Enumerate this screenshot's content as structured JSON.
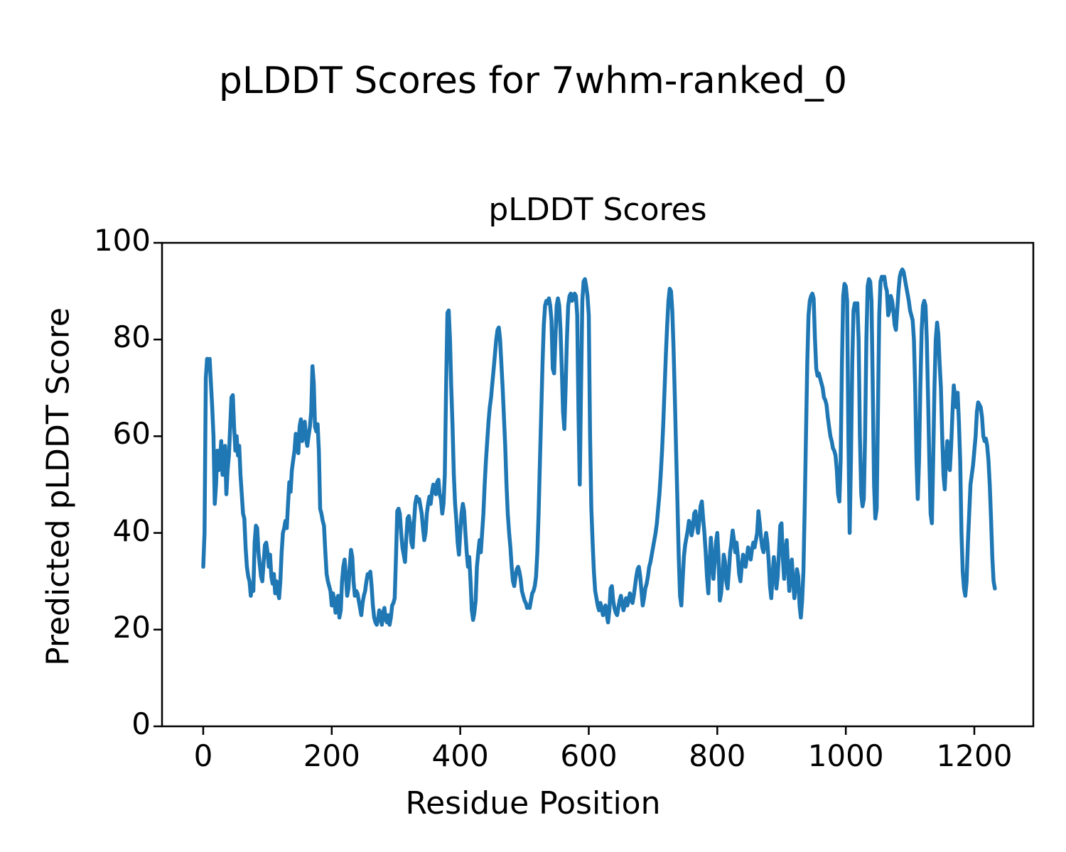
{
  "figure": {
    "suptitle": "pLDDT Scores for 7whm-ranked_0",
    "axes_title": "pLDDT Scores",
    "xlabel": "Residue Position",
    "ylabel": "Predicted pLDDT Score"
  },
  "chart_data": {
    "type": "line",
    "title": "pLDDT Scores",
    "xlabel": "Residue Position",
    "ylabel": "Predicted pLDDT Score",
    "xlim": [
      -64.1,
      1291.8
    ],
    "ylim": [
      0,
      100
    ],
    "xticks": [
      0,
      200,
      400,
      600,
      800,
      1000,
      1200
    ],
    "yticks": [
      0,
      20,
      40,
      60,
      80,
      100
    ],
    "grid": false,
    "legend": "none",
    "line_color": "#1f77b4",
    "series": [
      {
        "name": "pLDDT",
        "x": [
          0,
          2,
          4,
          6,
          8,
          10,
          12,
          14,
          16,
          18,
          20,
          22,
          24,
          26,
          28,
          30,
          32,
          34,
          36,
          38,
          40,
          42,
          44,
          46,
          48,
          50,
          52,
          54,
          56,
          58,
          60,
          62,
          64,
          66,
          68,
          70,
          72,
          74,
          76,
          78,
          80,
          82,
          84,
          86,
          88,
          90,
          92,
          94,
          96,
          98,
          100,
          102,
          104,
          106,
          108,
          110,
          112,
          114,
          116,
          118,
          120,
          122,
          124,
          126,
          128,
          130,
          132,
          134,
          136,
          138,
          140,
          142,
          144,
          146,
          148,
          150,
          152,
          154,
          156,
          158,
          160,
          162,
          164,
          166,
          168,
          170,
          172,
          174,
          176,
          178,
          180,
          182,
          184,
          186,
          188,
          190,
          192,
          194,
          196,
          198,
          200,
          202,
          204,
          206,
          208,
          210,
          212,
          214,
          216,
          218,
          220,
          222,
          224,
          226,
          228,
          230,
          232,
          234,
          236,
          238,
          240,
          242,
          244,
          246,
          248,
          250,
          252,
          254,
          256,
          258,
          260,
          262,
          264,
          266,
          268,
          270,
          272,
          274,
          276,
          278,
          280,
          282,
          284,
          286,
          288,
          290,
          292,
          294,
          296,
          298,
          300,
          302,
          304,
          306,
          308,
          310,
          312,
          314,
          316,
          318,
          320,
          322,
          324,
          326,
          328,
          330,
          332,
          334,
          336,
          338,
          340,
          342,
          344,
          346,
          348,
          350,
          352,
          354,
          356,
          358,
          360,
          362,
          364,
          366,
          368,
          370,
          372,
          374,
          376,
          378,
          380,
          382,
          384,
          386,
          388,
          390,
          392,
          394,
          396,
          398,
          400,
          402,
          404,
          406,
          408,
          410,
          412,
          414,
          416,
          418,
          420,
          422,
          424,
          426,
          428,
          430,
          432,
          434,
          436,
          438,
          440,
          442,
          444,
          446,
          448,
          450,
          452,
          454,
          456,
          458,
          460,
          462,
          464,
          466,
          468,
          470,
          472,
          474,
          476,
          478,
          480,
          482,
          484,
          486,
          488,
          490,
          492,
          494,
          496,
          498,
          500,
          502,
          504,
          506,
          508,
          510,
          512,
          514,
          516,
          518,
          520,
          522,
          524,
          526,
          528,
          530,
          532,
          534,
          536,
          538,
          540,
          542,
          544,
          546,
          548,
          550,
          552,
          554,
          556,
          558,
          560,
          562,
          564,
          566,
          568,
          570,
          572,
          574,
          576,
          578,
          580,
          582,
          584,
          586,
          588,
          590,
          592,
          594,
          596,
          598,
          600,
          602,
          604,
          606,
          608,
          610,
          612,
          614,
          616,
          618,
          620,
          622,
          624,
          626,
          628,
          630,
          632,
          634,
          636,
          638,
          640,
          642,
          644,
          646,
          648,
          650,
          652,
          654,
          656,
          658,
          660,
          662,
          664,
          666,
          668,
          670,
          672,
          674,
          676,
          678,
          680,
          682,
          684,
          686,
          688,
          690,
          692,
          694,
          696,
          698,
          700,
          702,
          704,
          706,
          708,
          710,
          712,
          714,
          716,
          718,
          720,
          722,
          724,
          726,
          728,
          730,
          732,
          734,
          736,
          738,
          740,
          742,
          744,
          746,
          748,
          750,
          752,
          754,
          756,
          758,
          760,
          762,
          764,
          766,
          768,
          770,
          772,
          774,
          776,
          778,
          780,
          782,
          784,
          786,
          788,
          790,
          792,
          794,
          796,
          798,
          800,
          802,
          804,
          806,
          808,
          810,
          812,
          814,
          816,
          818,
          820,
          822,
          824,
          826,
          828,
          830,
          832,
          834,
          836,
          838,
          840,
          842,
          844,
          846,
          848,
          850,
          852,
          854,
          856,
          858,
          860,
          862,
          864,
          866,
          868,
          870,
          872,
          874,
          876,
          878,
          880,
          882,
          884,
          886,
          888,
          890,
          892,
          894,
          896,
          898,
          900,
          902,
          904,
          906,
          908,
          910,
          912,
          914,
          916,
          918,
          920,
          922,
          924,
          926,
          928,
          930,
          932,
          934,
          936,
          938,
          940,
          942,
          944,
          946,
          948,
          950,
          952,
          954,
          956,
          958,
          960,
          962,
          964,
          966,
          968,
          970,
          972,
          974,
          976,
          978,
          980,
          982,
          984,
          986,
          988,
          990,
          992,
          994,
          996,
          998,
          1000,
          1002,
          1004,
          1006,
          1008,
          1010,
          1012,
          1014,
          1016,
          1018,
          1020,
          1022,
          1024,
          1026,
          1028,
          1030,
          1032,
          1034,
          1036,
          1038,
          1040,
          1042,
          1044,
          1046,
          1048,
          1050,
          1052,
          1054,
          1056,
          1058,
          1060,
          1062,
          1064,
          1066,
          1068,
          1070,
          1072,
          1074,
          1076,
          1078,
          1080,
          1082,
          1084,
          1086,
          1088,
          1090,
          1092,
          1094,
          1096,
          1098,
          1100,
          1102,
          1104,
          1106,
          1108,
          1110,
          1112,
          1114,
          1116,
          1118,
          1120,
          1122,
          1124,
          1126,
          1128,
          1130,
          1132,
          1134,
          1136,
          1138,
          1140,
          1142,
          1144,
          1146,
          1148,
          1150,
          1152,
          1154,
          1156,
          1158,
          1160,
          1162,
          1164,
          1166,
          1168,
          1170,
          1172,
          1174,
          1176,
          1178,
          1180,
          1182,
          1184,
          1186,
          1188,
          1190,
          1192,
          1194,
          1196,
          1198,
          1200,
          1202,
          1204,
          1206,
          1208,
          1210,
          1212,
          1214,
          1216,
          1218,
          1220,
          1222,
          1224,
          1226,
          1228,
          1230,
          1232
        ],
        "y": [
          33,
          40,
          72,
          76,
          75.5,
          76,
          71,
          66,
          60,
          46,
          50,
          57,
          53,
          55,
          59,
          52,
          55,
          58,
          48,
          53,
          56,
          62,
          68,
          68.5,
          62,
          57,
          60,
          56,
          58,
          52,
          48,
          44,
          43,
          37,
          33,
          31,
          30,
          27,
          29,
          28,
          38,
          41.5,
          41,
          36,
          33.5,
          31,
          30,
          34,
          37.5,
          38,
          36,
          33,
          35.5,
          31,
          29.5,
          31.5,
          27.5,
          30,
          28,
          26.5,
          30,
          36,
          40,
          41,
          42.5,
          41,
          46,
          50.5,
          48.5,
          53,
          55,
          57,
          60.5,
          58,
          56.5,
          62,
          63.5,
          59,
          61,
          63,
          59.5,
          58,
          60,
          62,
          65,
          74.5,
          71,
          62,
          61,
          62.5,
          57,
          45,
          44,
          42.5,
          41.5,
          36,
          31.5,
          30,
          29,
          28,
          25,
          27.5,
          26,
          23.5,
          26,
          27,
          22.5,
          24,
          30,
          33,
          34.5,
          31,
          27,
          28.5,
          33,
          36.5,
          35,
          30,
          27,
          28,
          27.5,
          26,
          24.5,
          23,
          25.5,
          27,
          28,
          30,
          31.5,
          31,
          32,
          29,
          25,
          22.5,
          21.5,
          21,
          22,
          24,
          23,
          21,
          23.5,
          24.5,
          22,
          21.5,
          23,
          21,
          22.5,
          25,
          25.5,
          26.5,
          35,
          44.5,
          45,
          44,
          40,
          37,
          35.5,
          34,
          39,
          43,
          43.5,
          42,
          38,
          37,
          42,
          46,
          47.5,
          46.5,
          47,
          45.5,
          44,
          41,
          38.5,
          40,
          44,
          46,
          47.5,
          46,
          48.5,
          50,
          49.5,
          48,
          50.5,
          51,
          48,
          47,
          44,
          46,
          52,
          70,
          85.5,
          86,
          80,
          70,
          62,
          52,
          46,
          42.5,
          38,
          35.5,
          40,
          44,
          46,
          44.5,
          40,
          36,
          33,
          35,
          30,
          24,
          22,
          23.5,
          26,
          33,
          36,
          38.5,
          36,
          40,
          44,
          50,
          55,
          59,
          63,
          66,
          68,
          71,
          74,
          77,
          80,
          82,
          82.5,
          80,
          75,
          70,
          64,
          58,
          50,
          44,
          40,
          37,
          33,
          30,
          29,
          31,
          32.5,
          33,
          32,
          30.5,
          28,
          27,
          26,
          25.5,
          24.5,
          25,
          24.5,
          26,
          27.5,
          28,
          29,
          31,
          36,
          44,
          55,
          65,
          75,
          83,
          87,
          88,
          87.5,
          88.5,
          87,
          84,
          74,
          73,
          80,
          87,
          88.5,
          87,
          82,
          74,
          65,
          61.5,
          70,
          80,
          87,
          89,
          89.5,
          88,
          88.5,
          89.5,
          89,
          85,
          65,
          50,
          70,
          88,
          92,
          92.5,
          91,
          89,
          85,
          60,
          45,
          38,
          32,
          28,
          26.5,
          25,
          24,
          25.5,
          24.5,
          23,
          24,
          25,
          23,
          21.5,
          24,
          28.5,
          29,
          26,
          24.5,
          23.5,
          23,
          24.5,
          26,
          27,
          25.5,
          24,
          25,
          26.5,
          25,
          26,
          27.5,
          26.5,
          25.5,
          27,
          29,
          31,
          32.5,
          33,
          31,
          28,
          25,
          26.5,
          28.5,
          29.5,
          31,
          33,
          34,
          35.5,
          37,
          38.5,
          40,
          42,
          45,
          48,
          52,
          57,
          63,
          70,
          77,
          83,
          88,
          90.5,
          90,
          86,
          78,
          68,
          57,
          46,
          35,
          27,
          25,
          30,
          35,
          37.5,
          39,
          40.5,
          42.5,
          42,
          39.5,
          41,
          44,
          44.5,
          42,
          40,
          42.5,
          45.5,
          46.5,
          43,
          40,
          36,
          31,
          27.5,
          34,
          39,
          34,
          30.5,
          34,
          38,
          40,
          35,
          26,
          27.5,
          31,
          35.5,
          34,
          30,
          28.5,
          32,
          36,
          38,
          40.5,
          38.5,
          36,
          38,
          35,
          31.5,
          30,
          33,
          35.5,
          34,
          33,
          35,
          37,
          36,
          34.5,
          36.5,
          38,
          37,
          38.5,
          40,
          44.5,
          42,
          39,
          37,
          36,
          38,
          40,
          38,
          34,
          29,
          26.5,
          31,
          35,
          32,
          28.5,
          31,
          36,
          41.5,
          42,
          35,
          30.5,
          36,
          38.5,
          33,
          28,
          32,
          34.5,
          30,
          26.5,
          29,
          32.5,
          31,
          25,
          22.5,
          26,
          32,
          45,
          60,
          75,
          85,
          88,
          89,
          89.5,
          88.5,
          80,
          74,
          72.5,
          73,
          72,
          71,
          70,
          68,
          67.5,
          66.5,
          64,
          62,
          60,
          59,
          57.5,
          57,
          56,
          53,
          48,
          46.5,
          55,
          75,
          89,
          91.5,
          91,
          88,
          60,
          40,
          55,
          75,
          86,
          87.5,
          86,
          87.5,
          80,
          60,
          48,
          45.5,
          47,
          60,
          80,
          91,
          92.5,
          92,
          88,
          70,
          50,
          43,
          45,
          65,
          85,
          92,
          93,
          92.5,
          93,
          91,
          90,
          85,
          86,
          89,
          88,
          86,
          83,
          82,
          86,
          90,
          93,
          94,
          94.5,
          94,
          92.5,
          91,
          89.5,
          88,
          86,
          85,
          84,
          80,
          70,
          55,
          47,
          55,
          70,
          82,
          87,
          88,
          87,
          80,
          68,
          55,
          44,
          42,
          55,
          70,
          80,
          83.5,
          81,
          75,
          70,
          60,
          52,
          49,
          55,
          59,
          54,
          53,
          58,
          65,
          70.5,
          68,
          66,
          69,
          63,
          55,
          40,
          32,
          28.5,
          27,
          30,
          38,
          44,
          50,
          52,
          54,
          57,
          60,
          65,
          67,
          66.5,
          66,
          64,
          60,
          59,
          59.5,
          58,
          55,
          50,
          43,
          35,
          30,
          28.5
        ]
      }
    ]
  },
  "ticks": {
    "x_labels": [
      "0",
      "200",
      "400",
      "600",
      "800",
      "1000",
      "1200"
    ],
    "y_labels": [
      "0",
      "20",
      "40",
      "60",
      "80",
      "100"
    ]
  }
}
